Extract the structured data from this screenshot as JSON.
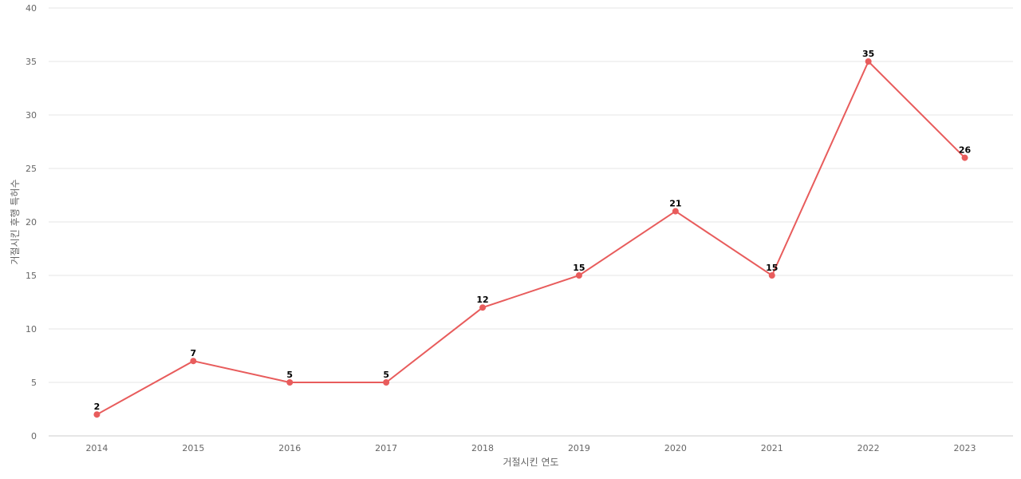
{
  "chart_data": {
    "type": "line",
    "xlabel": "거절시킨 연도",
    "ylabel": "거절시킨 후행 특허수",
    "ylim": [
      0,
      40
    ],
    "yticks": [
      0,
      5,
      10,
      15,
      20,
      25,
      30,
      35,
      40
    ],
    "grid": true,
    "legend": "none",
    "categories": [
      "2014",
      "2015",
      "2016",
      "2017",
      "2018",
      "2019",
      "2020",
      "2021",
      "2022",
      "2023"
    ],
    "series": [
      {
        "values": [
          2,
          7,
          5,
          5,
          12,
          15,
          21,
          15,
          35,
          26
        ],
        "color": "#e85c5c"
      }
    ]
  }
}
